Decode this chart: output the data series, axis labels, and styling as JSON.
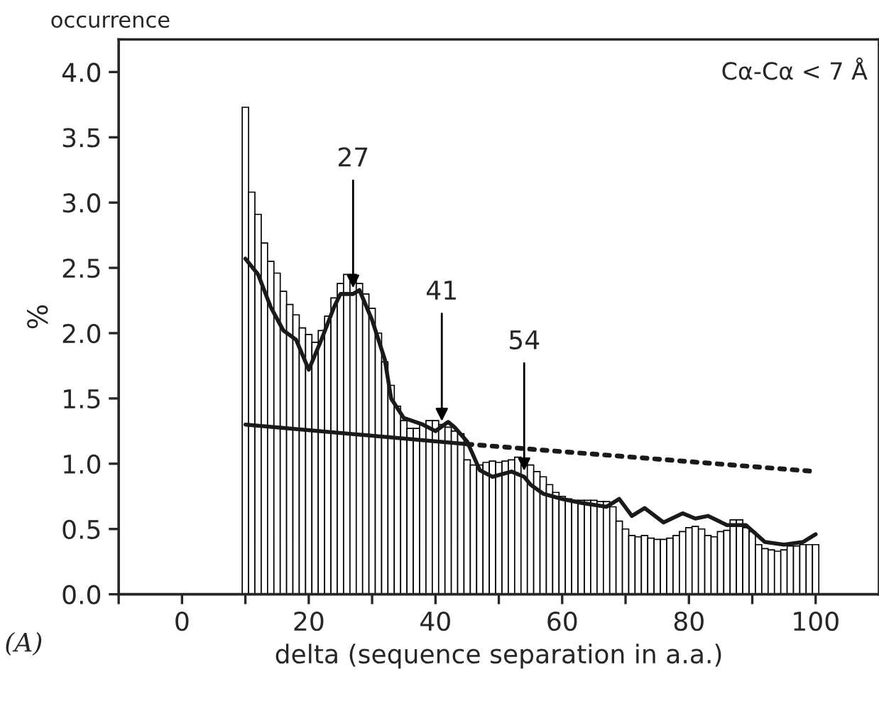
{
  "chart_data": {
    "type": "histogram",
    "title": "occurrence",
    "xlabel": "delta (sequence separation in a.a.)",
    "ylabel": "%",
    "color": "#ffffff",
    "bins": [
      9.5,
      10.5,
      11.5,
      12.5,
      13.5,
      14.5,
      15.5,
      16.5,
      17.5,
      18.5,
      19.5,
      20.5,
      21.5,
      22.5,
      23.5,
      24.5,
      25.5,
      26.5,
      27.5,
      28.5,
      29.5,
      30.5,
      31.5,
      32.5,
      33.5,
      34.5,
      35.5,
      36.5,
      37.5,
      38.5,
      39.5,
      40.5,
      41.5,
      42.5,
      43.5,
      44.5,
      45.5,
      46.5,
      47.5,
      48.5,
      49.5,
      50.5,
      51.5,
      52.5,
      53.5,
      54.5,
      55.5,
      56.5,
      57.5,
      58.5,
      59.5,
      60.5,
      61.5,
      62.5,
      63.5,
      64.5,
      65.5,
      66.5,
      67.5,
      68.5,
      69.5,
      70.5,
      71.5,
      72.5,
      73.5,
      74.5,
      75.5,
      76.5,
      77.5,
      78.5,
      79.5,
      80.5,
      81.5,
      82.5,
      83.5,
      84.5,
      85.5,
      86.5,
      87.5,
      88.5,
      89.5,
      90.5,
      91.5,
      92.5,
      93.5,
      94.5,
      95.5,
      96.5,
      97.5,
      98.5,
      99.5,
      100.5
    ],
    "values": [
      3.73,
      3.08,
      2.91,
      2.69,
      2.55,
      2.46,
      2.32,
      2.22,
      2.14,
      2.04,
      1.99,
      1.93,
      2.02,
      2.13,
      2.27,
      2.38,
      2.45,
      2.45,
      2.38,
      2.3,
      2.19,
      2.0,
      1.78,
      1.6,
      1.44,
      1.33,
      1.27,
      1.27,
      1.3,
      1.33,
      1.33,
      1.3,
      1.28,
      1.25,
      1.23,
      1.03,
      0.99,
      0.99,
      1.01,
      1.02,
      1.01,
      1.02,
      1.03,
      1.05,
      1.04,
      0.99,
      0.94,
      0.9,
      0.84,
      0.78,
      0.75,
      0.73,
      0.72,
      0.72,
      0.72,
      0.72,
      0.71,
      0.71,
      0.67,
      0.56,
      0.5,
      0.45,
      0.44,
      0.45,
      0.43,
      0.42,
      0.42,
      0.43,
      0.45,
      0.48,
      0.51,
      0.52,
      0.5,
      0.45,
      0.44,
      0.48,
      0.49,
      0.57,
      0.57,
      0.51,
      0.48,
      0.38,
      0.35,
      0.34,
      0.33,
      0.34,
      0.37,
      0.37,
      0.38,
      0.38,
      0.38
    ],
    "series": [
      {
        "type": "line",
        "color": "#1a1a1a",
        "line_style": "solid",
        "x": [
          10,
          12,
          14,
          16,
          18,
          20,
          22,
          24,
          25,
          27,
          28,
          30,
          32,
          33,
          35,
          38,
          40,
          42,
          43,
          45,
          47,
          49,
          52,
          54,
          55,
          57,
          60,
          63,
          67,
          69,
          71,
          73,
          76,
          79,
          81,
          83,
          86,
          89,
          92,
          95,
          98,
          100
        ],
        "values": [
          2.57,
          2.45,
          2.2,
          2.02,
          1.95,
          1.72,
          1.95,
          2.2,
          2.3,
          2.3,
          2.33,
          2.1,
          1.8,
          1.5,
          1.35,
          1.3,
          1.25,
          1.32,
          1.28,
          1.17,
          0.95,
          0.9,
          0.94,
          0.9,
          0.84,
          0.77,
          0.73,
          0.7,
          0.67,
          0.73,
          0.6,
          0.66,
          0.55,
          0.62,
          0.58,
          0.6,
          0.53,
          0.53,
          0.4,
          0.38,
          0.4,
          0.46
        ]
      },
      {
        "type": "line",
        "color": "#1a1a1a",
        "line_style": "solid",
        "x": [
          10,
          45
        ],
        "values": [
          1.3,
          1.15
        ]
      },
      {
        "type": "line",
        "color": "#1a1a1a",
        "line_style": "dotted",
        "x": [
          45,
          100
        ],
        "values": [
          1.15,
          0.94
        ]
      }
    ],
    "annotations": [
      {
        "text": "27",
        "x": 27,
        "y": 2.3
      },
      {
        "text": "41",
        "x": 41,
        "y": 1.28
      },
      {
        "text": "54",
        "x": 54,
        "y": 0.9
      },
      "Cα-Cα < 7 Å",
      "(A)"
    ],
    "xlim": [
      -10,
      110
    ],
    "ylim": [
      0,
      4.25
    ],
    "xticks": [
      {
        "value": -10,
        "label": null
      },
      0,
      {
        "value": 10,
        "label": null
      },
      20,
      {
        "value": 30,
        "label": null
      },
      40,
      {
        "value": 50,
        "label": null
      },
      60,
      {
        "value": 70,
        "label": null
      },
      80,
      {
        "value": 90,
        "label": null
      },
      100
    ],
    "yticks": [
      {
        "value": 0,
        "label": "0.0"
      },
      {
        "value": 0.5,
        "label": "0.5"
      },
      {
        "value": 1,
        "label": "1.0"
      },
      {
        "value": 1.5,
        "label": "1.5"
      },
      {
        "value": 2,
        "label": "2.0"
      },
      {
        "value": 2.5,
        "label": "2.5"
      },
      {
        "value": 3,
        "label": "3.0"
      },
      {
        "value": 3.5,
        "label": "3.5"
      },
      {
        "value": 4,
        "label": "4.0"
      }
    ],
    "grid": false,
    "legend": false
  }
}
